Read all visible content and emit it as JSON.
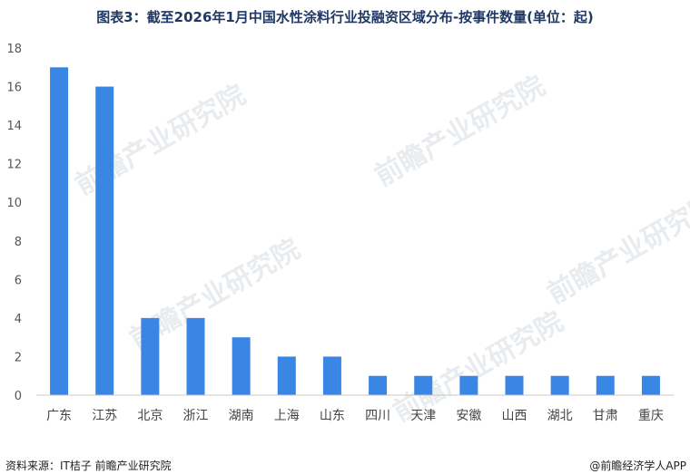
{
  "title": "图表3：截至2026年1月中国水性涂料行业投融资区域分布-按事件数量(单位：起)",
  "source": "资料来源：IT桔子 前瞻产业研究院",
  "brand": "@前瞻经济学人APP",
  "watermark": "前瞻产业研究院",
  "colors": {
    "bar": "#3a86e4",
    "axis": "#c8c8c8",
    "title": "#1f3864"
  },
  "chart_data": {
    "type": "bar",
    "title": "图表3：截至2026年1月中国水性涂料行业投融资区域分布-按事件数量(单位：起)",
    "categories": [
      "广东",
      "江苏",
      "北京",
      "浙江",
      "湖南",
      "上海",
      "山东",
      "四川",
      "天津",
      "安徽",
      "山西",
      "湖北",
      "甘肃",
      "重庆"
    ],
    "values": [
      17,
      16,
      4,
      4,
      3,
      2,
      2,
      1,
      1,
      1,
      1,
      1,
      1,
      1
    ],
    "ylim": [
      0,
      18
    ],
    "yticks": [
      0,
      2,
      4,
      6,
      8,
      10,
      12,
      14,
      16,
      18
    ],
    "grid": false,
    "legend": "none"
  }
}
